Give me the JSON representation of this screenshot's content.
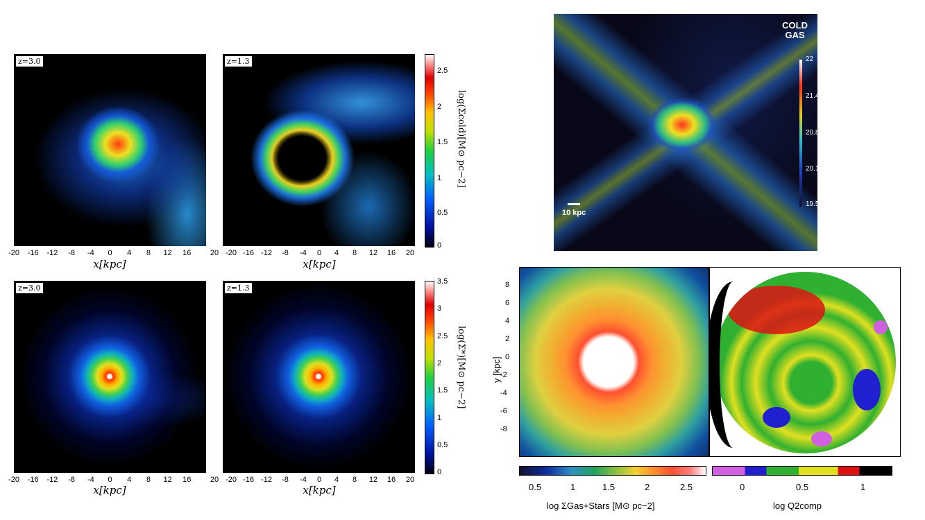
{
  "left_top": {
    "panels": [
      {
        "redshift": "z=3.0"
      },
      {
        "redshift": "z=1.3"
      }
    ],
    "x_ticks": [
      "-20",
      "-16",
      "-12",
      "-8",
      "-4",
      "0",
      "4",
      "8",
      "12",
      "16",
      "20"
    ],
    "x_ticks_right_last": "20",
    "x_label": "x[kpc]",
    "colorbar_ticks": [
      "2.5",
      "2",
      "1.5",
      "1",
      "0.5",
      "0"
    ],
    "colorbar_label": "log(Σcold)[M⊙ pc−2]"
  },
  "left_bottom": {
    "panels": [
      {
        "redshift": "z=3.0"
      },
      {
        "redshift": "z=1.3"
      }
    ],
    "x_ticks": [
      "-20",
      "-16",
      "-12",
      "-8",
      "-4",
      "0",
      "4",
      "8",
      "12",
      "16",
      "20"
    ],
    "x_label": "x[kpc]",
    "colorbar_ticks": [
      "3.5",
      "3",
      "2.5",
      "2",
      "1.5",
      "1",
      "0.5",
      "0"
    ],
    "colorbar_label": "log(Σ*)[M⊙ pc−2]"
  },
  "cold_gas": {
    "title_line1": "COLD",
    "title_line2": "GAS",
    "colorbar_ticks": [
      "22",
      "21.4",
      "20.8",
      "20.1",
      "19.5"
    ],
    "scalebar": "10 kpc"
  },
  "bottom_right": {
    "y_label": "y [kpc]",
    "y_ticks": [
      "8",
      "6",
      "4",
      "2",
      "0",
      "-2",
      "-4",
      "-6",
      "-8"
    ],
    "cbar1_ticks": [
      "0.5",
      "1",
      "1.5",
      "2",
      "2.5"
    ],
    "cbar1_label": "log ΣGas+Stars [M⊙ pc−2]",
    "cbar2_ticks": [
      "0",
      "0.5",
      "1"
    ],
    "cbar2_label": "log Q2comp"
  }
}
